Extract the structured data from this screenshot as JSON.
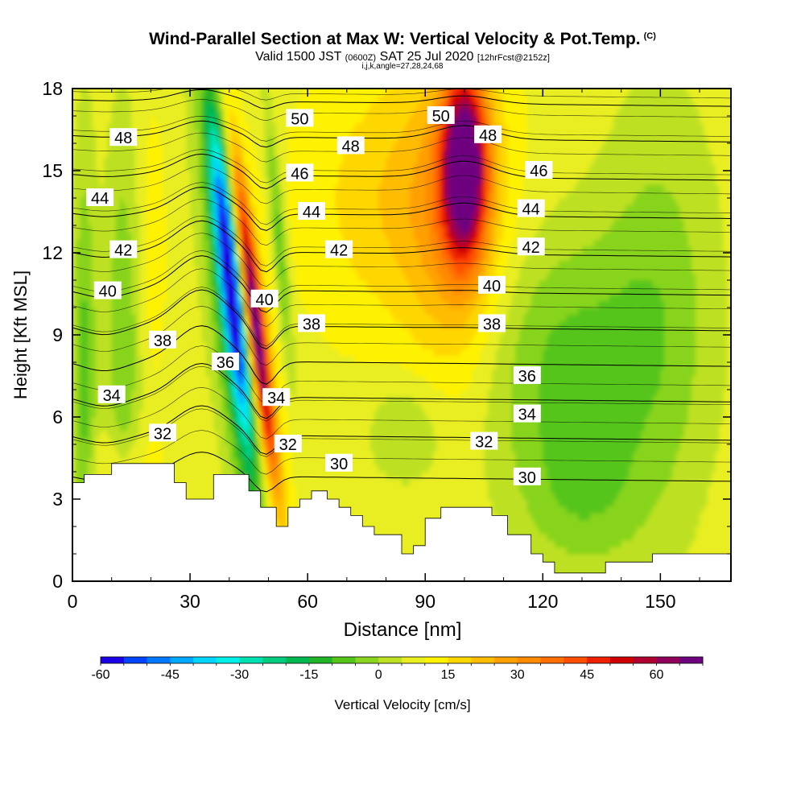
{
  "title": "Wind-Parallel Section at Max W: Vertical Velocity & Pot.Temp.",
  "title_mark": "(C)",
  "subtitle_a": "Valid 1500 JST",
  "subtitle_b": "(0600Z)",
  "subtitle_c": "SAT 25 Jul 2020",
  "subtitle_d": "[12hrFcst@2152z]",
  "subtitle_line2": "i,j,k,angle=27,28,24,68",
  "chart_data": {
    "type": "heatmap",
    "xlabel": "Distance [nm]",
    "ylabel": "Height [Kft MSL]",
    "xlim": [
      0,
      168
    ],
    "ylim": [
      0,
      18
    ],
    "xticks": [
      0,
      30,
      60,
      90,
      120,
      150
    ],
    "yticks": [
      0,
      3,
      6,
      9,
      12,
      15,
      18
    ],
    "colorbar": {
      "label": "Vertical Velocity [cm/s]",
      "min": -60,
      "max": 70,
      "step": 5,
      "ticks": [
        -60,
        -45,
        -30,
        -15,
        0,
        15,
        30,
        45,
        60
      ],
      "colors": [
        "#1a00e6",
        "#0044ff",
        "#0077ff",
        "#00a8ff",
        "#00d4ff",
        "#00f0e8",
        "#00e0b0",
        "#00cc80",
        "#00b850",
        "#22b428",
        "#55c51c",
        "#88d41e",
        "#bde122",
        "#e8ee20",
        "#fff200",
        "#ffd700",
        "#ffbc00",
        "#ffa000",
        "#ff8a00",
        "#ff6e00",
        "#ff4e00",
        "#ee2000",
        "#d00000",
        "#b00030",
        "#90005a",
        "#6e0080"
      ]
    },
    "velocity_features": [
      {
        "kind": "updraft",
        "x": 47,
        "y": 9.0,
        "peak": 50
      },
      {
        "kind": "downdraft",
        "x": 41,
        "y": 11.0,
        "peak": -55
      },
      {
        "kind": "updraft",
        "x": 100,
        "y": 15.0,
        "peak": 65
      }
    ],
    "theta_contours": [
      {
        "value": 30,
        "baseline": 3.9
      },
      {
        "value": 32,
        "baseline": 5.4
      },
      {
        "value": 34,
        "baseline": 6.8
      },
      {
        "value": 36,
        "baseline": 8.1
      },
      {
        "value": 38,
        "baseline": 9.4
      },
      {
        "value": 40,
        "baseline": 10.7
      },
      {
        "value": 42,
        "baseline": 12.1
      },
      {
        "value": 44,
        "baseline": 13.5
      },
      {
        "value": 46,
        "baseline": 14.9
      },
      {
        "value": 48,
        "baseline": 16.3
      },
      {
        "value": 50,
        "baseline": 17.6
      }
    ],
    "contour_labels": [
      {
        "text": "48",
        "x": 13,
        "y": 16.2
      },
      {
        "text": "44",
        "x": 7,
        "y": 14.0
      },
      {
        "text": "42",
        "x": 13,
        "y": 12.1
      },
      {
        "text": "40",
        "x": 9,
        "y": 10.6
      },
      {
        "text": "38",
        "x": 23,
        "y": 8.8
      },
      {
        "text": "34",
        "x": 10,
        "y": 6.8
      },
      {
        "text": "32",
        "x": 23,
        "y": 5.4
      },
      {
        "text": "50",
        "x": 58,
        "y": 16.9
      },
      {
        "text": "48",
        "x": 71,
        "y": 15.9
      },
      {
        "text": "46",
        "x": 58,
        "y": 14.9
      },
      {
        "text": "44",
        "x": 61,
        "y": 13.5
      },
      {
        "text": "42",
        "x": 68,
        "y": 12.1
      },
      {
        "text": "40",
        "x": 49,
        "y": 10.3
      },
      {
        "text": "38",
        "x": 61,
        "y": 9.4
      },
      {
        "text": "36",
        "x": 39,
        "y": 8.0
      },
      {
        "text": "34",
        "x": 52,
        "y": 6.7
      },
      {
        "text": "32",
        "x": 55,
        "y": 5.0
      },
      {
        "text": "30",
        "x": 68,
        "y": 4.3
      },
      {
        "text": "50",
        "x": 94,
        "y": 17.0
      },
      {
        "text": "48",
        "x": 106,
        "y": 16.3
      },
      {
        "text": "46",
        "x": 119,
        "y": 15.0
      },
      {
        "text": "44",
        "x": 117,
        "y": 13.6
      },
      {
        "text": "42",
        "x": 117,
        "y": 12.2
      },
      {
        "text": "40",
        "x": 107,
        "y": 10.8
      },
      {
        "text": "38",
        "x": 107,
        "y": 9.4
      },
      {
        "text": "36",
        "x": 116,
        "y": 7.5
      },
      {
        "text": "34",
        "x": 116,
        "y": 6.1
      },
      {
        "text": "32",
        "x": 105,
        "y": 5.1
      },
      {
        "text": "30",
        "x": 116,
        "y": 3.8
      }
    ],
    "terrain": [
      [
        0,
        3.6
      ],
      [
        3,
        3.6
      ],
      [
        3,
        3.9
      ],
      [
        10,
        3.9
      ],
      [
        10,
        4.3
      ],
      [
        26,
        4.3
      ],
      [
        26,
        3.6
      ],
      [
        29,
        3.6
      ],
      [
        29,
        3.0
      ],
      [
        36,
        3.0
      ],
      [
        36,
        3.9
      ],
      [
        45,
        3.9
      ],
      [
        45,
        3.3
      ],
      [
        48,
        3.3
      ],
      [
        48,
        2.7
      ],
      [
        52,
        2.7
      ],
      [
        52,
        2.0
      ],
      [
        55,
        2.0
      ],
      [
        55,
        2.7
      ],
      [
        58,
        2.7
      ],
      [
        58,
        3.0
      ],
      [
        61,
        3.0
      ],
      [
        61,
        3.3
      ],
      [
        65,
        3.3
      ],
      [
        65,
        3.0
      ],
      [
        68,
        3.0
      ],
      [
        68,
        2.7
      ],
      [
        71,
        2.7
      ],
      [
        71,
        2.4
      ],
      [
        74,
        2.4
      ],
      [
        74,
        2.0
      ],
      [
        77,
        2.0
      ],
      [
        77,
        1.7
      ],
      [
        84,
        1.7
      ],
      [
        84,
        1.0
      ],
      [
        87,
        1.0
      ],
      [
        87,
        1.3
      ],
      [
        90,
        1.3
      ],
      [
        90,
        2.3
      ],
      [
        94,
        2.3
      ],
      [
        94,
        2.7
      ],
      [
        107,
        2.7
      ],
      [
        107,
        2.4
      ],
      [
        111,
        2.4
      ],
      [
        111,
        1.7
      ],
      [
        117,
        1.7
      ],
      [
        117,
        1.0
      ],
      [
        120,
        1.0
      ],
      [
        120,
        0.7
      ],
      [
        123,
        0.7
      ],
      [
        123,
        0.3
      ],
      [
        136,
        0.3
      ],
      [
        136,
        0.7
      ],
      [
        148,
        0.7
      ],
      [
        148,
        1.0
      ],
      [
        168,
        1.0
      ],
      [
        168,
        0
      ],
      [
        0,
        0
      ]
    ]
  }
}
